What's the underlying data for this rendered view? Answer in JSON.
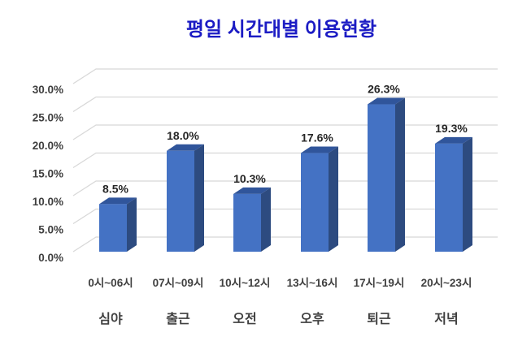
{
  "chart_data": {
    "type": "bar",
    "variant": "3d-column",
    "title": "평일 시간대별 이용현황",
    "title_color": "#1C1CC4",
    "categories": [
      "0시~06시",
      "07시~09시",
      "10시~12시",
      "13시~16시",
      "17시~19시",
      "20시~23시"
    ],
    "category_names": [
      "심야",
      "출근",
      "오전",
      "오후",
      "퇴근",
      "저녁"
    ],
    "values": [
      8.5,
      18.0,
      10.3,
      17.6,
      26.3,
      19.3
    ],
    "data_labels": [
      "8.5%",
      "18.0%",
      "10.3%",
      "17.6%",
      "26.3%",
      "19.3%"
    ],
    "y_ticks": [
      "0.0%",
      "5.0%",
      "10.0%",
      "15.0%",
      "20.0%",
      "25.0%",
      "30.0%"
    ],
    "y_tick_values": [
      0,
      5,
      10,
      15,
      20,
      25,
      30
    ],
    "ylim": [
      0,
      30
    ],
    "grid": true,
    "legend": false,
    "colors": {
      "bar_front": "#4472C4",
      "bar_top": "#30559B",
      "bar_side": "#2D4B80",
      "gridline": "#D8D8D8",
      "axis_text": "#404040",
      "value_text": "#262626"
    }
  }
}
